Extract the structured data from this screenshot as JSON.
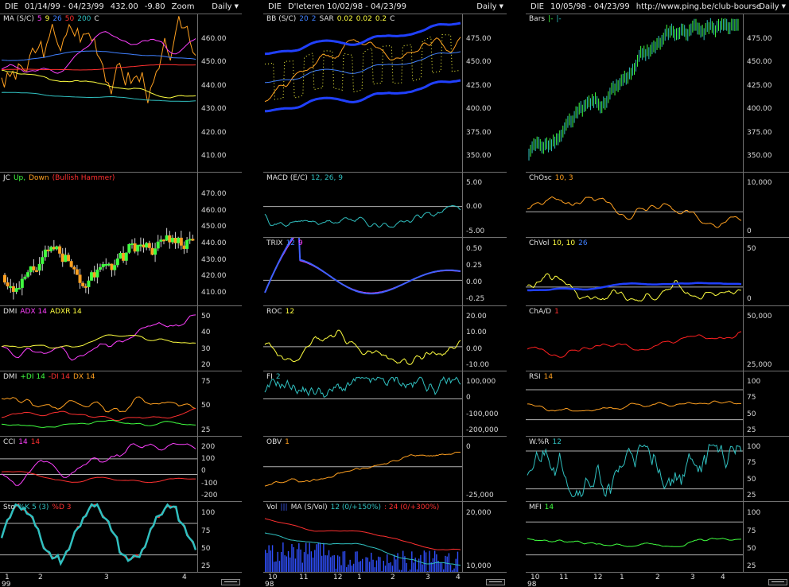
{
  "columns": [
    {
      "header": {
        "symbol": "DIE",
        "range": "01/14/99 - 04/23/99",
        "last": "432.00",
        "change": "-9.80",
        "extra": "Zoom",
        "period": "Daily"
      },
      "xaxis": {
        "labels": [
          "1",
          "2",
          "3",
          "4"
        ],
        "year": "99"
      },
      "panels": [
        {
          "id": "ma",
          "name": [
            {
              "t": "MA (S/C)",
              "c": "#e0e0e0"
            },
            {
              "t": "5",
              "c": "#ff40ff"
            },
            {
              "t": "9",
              "c": "#ffff40"
            },
            {
              "t": "26",
              "c": "#4080ff"
            },
            {
              "t": "50",
              "c": "#ff3030"
            },
            {
              "t": "200",
              "c": "#30c0c0"
            },
            {
              "t": "C",
              "c": "#e0e0e0"
            }
          ],
          "ticks": [
            "460.00",
            "450.00",
            "440.00",
            "430.00",
            "420.00",
            "410.00"
          ]
        },
        {
          "id": "jc",
          "name": [
            {
              "t": "JC",
              "c": "#e0e0e0"
            },
            {
              "t": "Up,",
              "c": "#40ff40"
            },
            {
              "t": "Down",
              "c": "#ffa020"
            },
            {
              "t": "(Bullish Hammer)",
              "c": "#ff3030"
            }
          ],
          "ticks": [
            "470.00",
            "460.00",
            "450.00",
            "440.00",
            "430.00",
            "420.00",
            "410.00"
          ]
        },
        {
          "id": "dmi1",
          "name": [
            {
              "t": "DMI",
              "c": "#e0e0e0"
            },
            {
              "t": "ADX 14",
              "c": "#ff40ff"
            },
            {
              "t": "ADXR 14",
              "c": "#ffff40"
            }
          ],
          "ticks": [
            "50",
            "40",
            "30",
            "20"
          ]
        },
        {
          "id": "dmi2",
          "name": [
            {
              "t": "DMI",
              "c": "#e0e0e0"
            },
            {
              "t": "+DI 14",
              "c": "#40ff40"
            },
            {
              "t": "-DI 14",
              "c": "#ff3030"
            },
            {
              "t": "DX 14",
              "c": "#ffa020"
            }
          ],
          "ticks": [
            "75",
            "50",
            "25"
          ]
        },
        {
          "id": "cci",
          "name": [
            {
              "t": "CCI",
              "c": "#e0e0e0"
            },
            {
              "t": "14",
              "c": "#ff40ff"
            },
            {
              "t": "14",
              "c": "#ff3030"
            }
          ],
          "ticks": [
            "200",
            "100",
            "0",
            "-100",
            "-200"
          ]
        },
        {
          "id": "sto",
          "name": [
            {
              "t": "Sto",
              "c": "#e0e0e0"
            },
            {
              "t": "%K 5 (3)",
              "c": "#30c0c0"
            },
            {
              "t": "%D 3",
              "c": "#ff3030"
            }
          ],
          "ticks": [
            "100",
            "75",
            "50",
            "25"
          ]
        }
      ]
    },
    {
      "header": {
        "symbol": "DIE",
        "range": "D'Ieteren  10/02/98 - 04/23/99",
        "last": "",
        "change": "",
        "extra": "",
        "period": "Daily"
      },
      "xaxis": {
        "labels": [
          "10",
          "11",
          "12",
          "1",
          "2",
          "3",
          "4"
        ],
        "year": "98"
      },
      "panels": [
        {
          "id": "bb",
          "name": [
            {
              "t": "BB (S/C)",
              "c": "#e0e0e0"
            },
            {
              "t": "20",
              "c": "#4080ff"
            },
            {
              "t": "2",
              "c": "#4080ff"
            },
            {
              "t": "SAR",
              "c": "#e0e0e0"
            },
            {
              "t": "0.02",
              "c": "#ffff40"
            },
            {
              "t": "0.02",
              "c": "#ffff40"
            },
            {
              "t": "0.2",
              "c": "#ffff40"
            },
            {
              "t": "C",
              "c": "#e0e0e0"
            }
          ],
          "ticks": [
            "475.00",
            "450.00",
            "425.00",
            "400.00",
            "375.00",
            "350.00"
          ]
        },
        {
          "id": "macd",
          "name": [
            {
              "t": "MACD (E/C)",
              "c": "#e0e0e0"
            },
            {
              "t": "12, 26, 9",
              "c": "#30c0c0"
            }
          ],
          "ticks": [
            "5.00",
            "0.00",
            "-5.00"
          ]
        },
        {
          "id": "trix",
          "name": [
            {
              "t": "TRIX",
              "c": "#e0e0e0"
            },
            {
              "t": "12",
              "c": "#4080ff"
            },
            {
              "t": "9",
              "c": "#ff40ff"
            }
          ],
          "ticks": [
            "0.50",
            "0.25",
            "0.00",
            "-0.25"
          ]
        },
        {
          "id": "roc",
          "name": [
            {
              "t": "ROC",
              "c": "#e0e0e0"
            },
            {
              "t": "12",
              "c": "#ffff40"
            }
          ],
          "ticks": [
            "20.00",
            "10.00",
            "0.00",
            "-10.00"
          ]
        },
        {
          "id": "fi",
          "name": [
            {
              "t": "FI",
              "c": "#e0e0e0"
            },
            {
              "t": "2",
              "c": "#30c0c0"
            }
          ],
          "ticks": [
            "100,000",
            "0",
            "-100,000",
            "-200,000"
          ]
        },
        {
          "id": "obv",
          "name": [
            {
              "t": "OBV",
              "c": "#e0e0e0"
            },
            {
              "t": "1",
              "c": "#ffa020"
            }
          ],
          "ticks": [
            "0",
            "-25,000"
          ]
        },
        {
          "id": "vol",
          "name": [
            {
              "t": "Vol",
              "c": "#e0e0e0"
            },
            {
              "t": "|||",
              "c": "#4060ff"
            },
            {
              "t": "MA (S/Vol)",
              "c": "#e0e0e0"
            },
            {
              "t": "12 (0/+150%)",
              "c": "#30c0c0"
            },
            {
              "t": ": 24 (0/+300%)",
              "c": "#ff3030"
            }
          ],
          "ticks": [
            "20,000",
            "10,000"
          ]
        }
      ]
    },
    {
      "header": {
        "symbol": "DIE",
        "range": "10/05/98 - 04/23/99",
        "last": "",
        "change": "",
        "extra": "http://www.ping.be/club-bourse",
        "period": "Daily"
      },
      "xaxis": {
        "labels": [
          "10",
          "11",
          "12",
          "1",
          "2",
          "3",
          "4"
        ],
        "year": "98"
      },
      "panels": [
        {
          "id": "bars",
          "name": [
            {
              "t": "Bars",
              "c": "#e0e0e0"
            },
            {
              "t": "|-",
              "c": "#40ff40"
            },
            {
              "t": "|-",
              "c": "#30c0c0"
            }
          ],
          "ticks": [
            "475.00",
            "450.00",
            "425.00",
            "400.00",
            "375.00",
            "350.00"
          ]
        },
        {
          "id": "chosc",
          "name": [
            {
              "t": "ChOsc",
              "c": "#e0e0e0"
            },
            {
              "t": "10, 3",
              "c": "#ffa020"
            }
          ],
          "ticks": [
            "10,000",
            "0"
          ]
        },
        {
          "id": "chvol",
          "name": [
            {
              "t": "ChVol",
              "c": "#e0e0e0"
            },
            {
              "t": "10, 10",
              "c": "#ffff40"
            },
            {
              "t": "26",
              "c": "#4080ff"
            }
          ],
          "ticks": [
            "50",
            "0"
          ]
        },
        {
          "id": "chad",
          "name": [
            {
              "t": "ChA/D",
              "c": "#e0e0e0"
            },
            {
              "t": "1",
              "c": "#ff3030"
            }
          ],
          "ticks": [
            "50,000",
            "25,000"
          ]
        },
        {
          "id": "rsi",
          "name": [
            {
              "t": "RSI",
              "c": "#e0e0e0"
            },
            {
              "t": "14",
              "c": "#ffa020"
            }
          ],
          "ticks": [
            "100",
            "75",
            "50",
            "25"
          ]
        },
        {
          "id": "wr",
          "name": [
            {
              "t": "W.%R",
              "c": "#e0e0e0"
            },
            {
              "t": "12",
              "c": "#30c0c0"
            }
          ],
          "ticks": [
            "100",
            "75",
            "50",
            "25"
          ]
        },
        {
          "id": "mfi",
          "name": [
            {
              "t": "MFI",
              "c": "#e0e0e0"
            },
            {
              "t": "14",
              "c": "#40ff40"
            }
          ],
          "ticks": [
            "100",
            "75",
            "50",
            "25"
          ]
        }
      ]
    }
  ],
  "colors": {
    "bg": "#000000",
    "grid": "#707070",
    "text": "#e0e0e0"
  }
}
